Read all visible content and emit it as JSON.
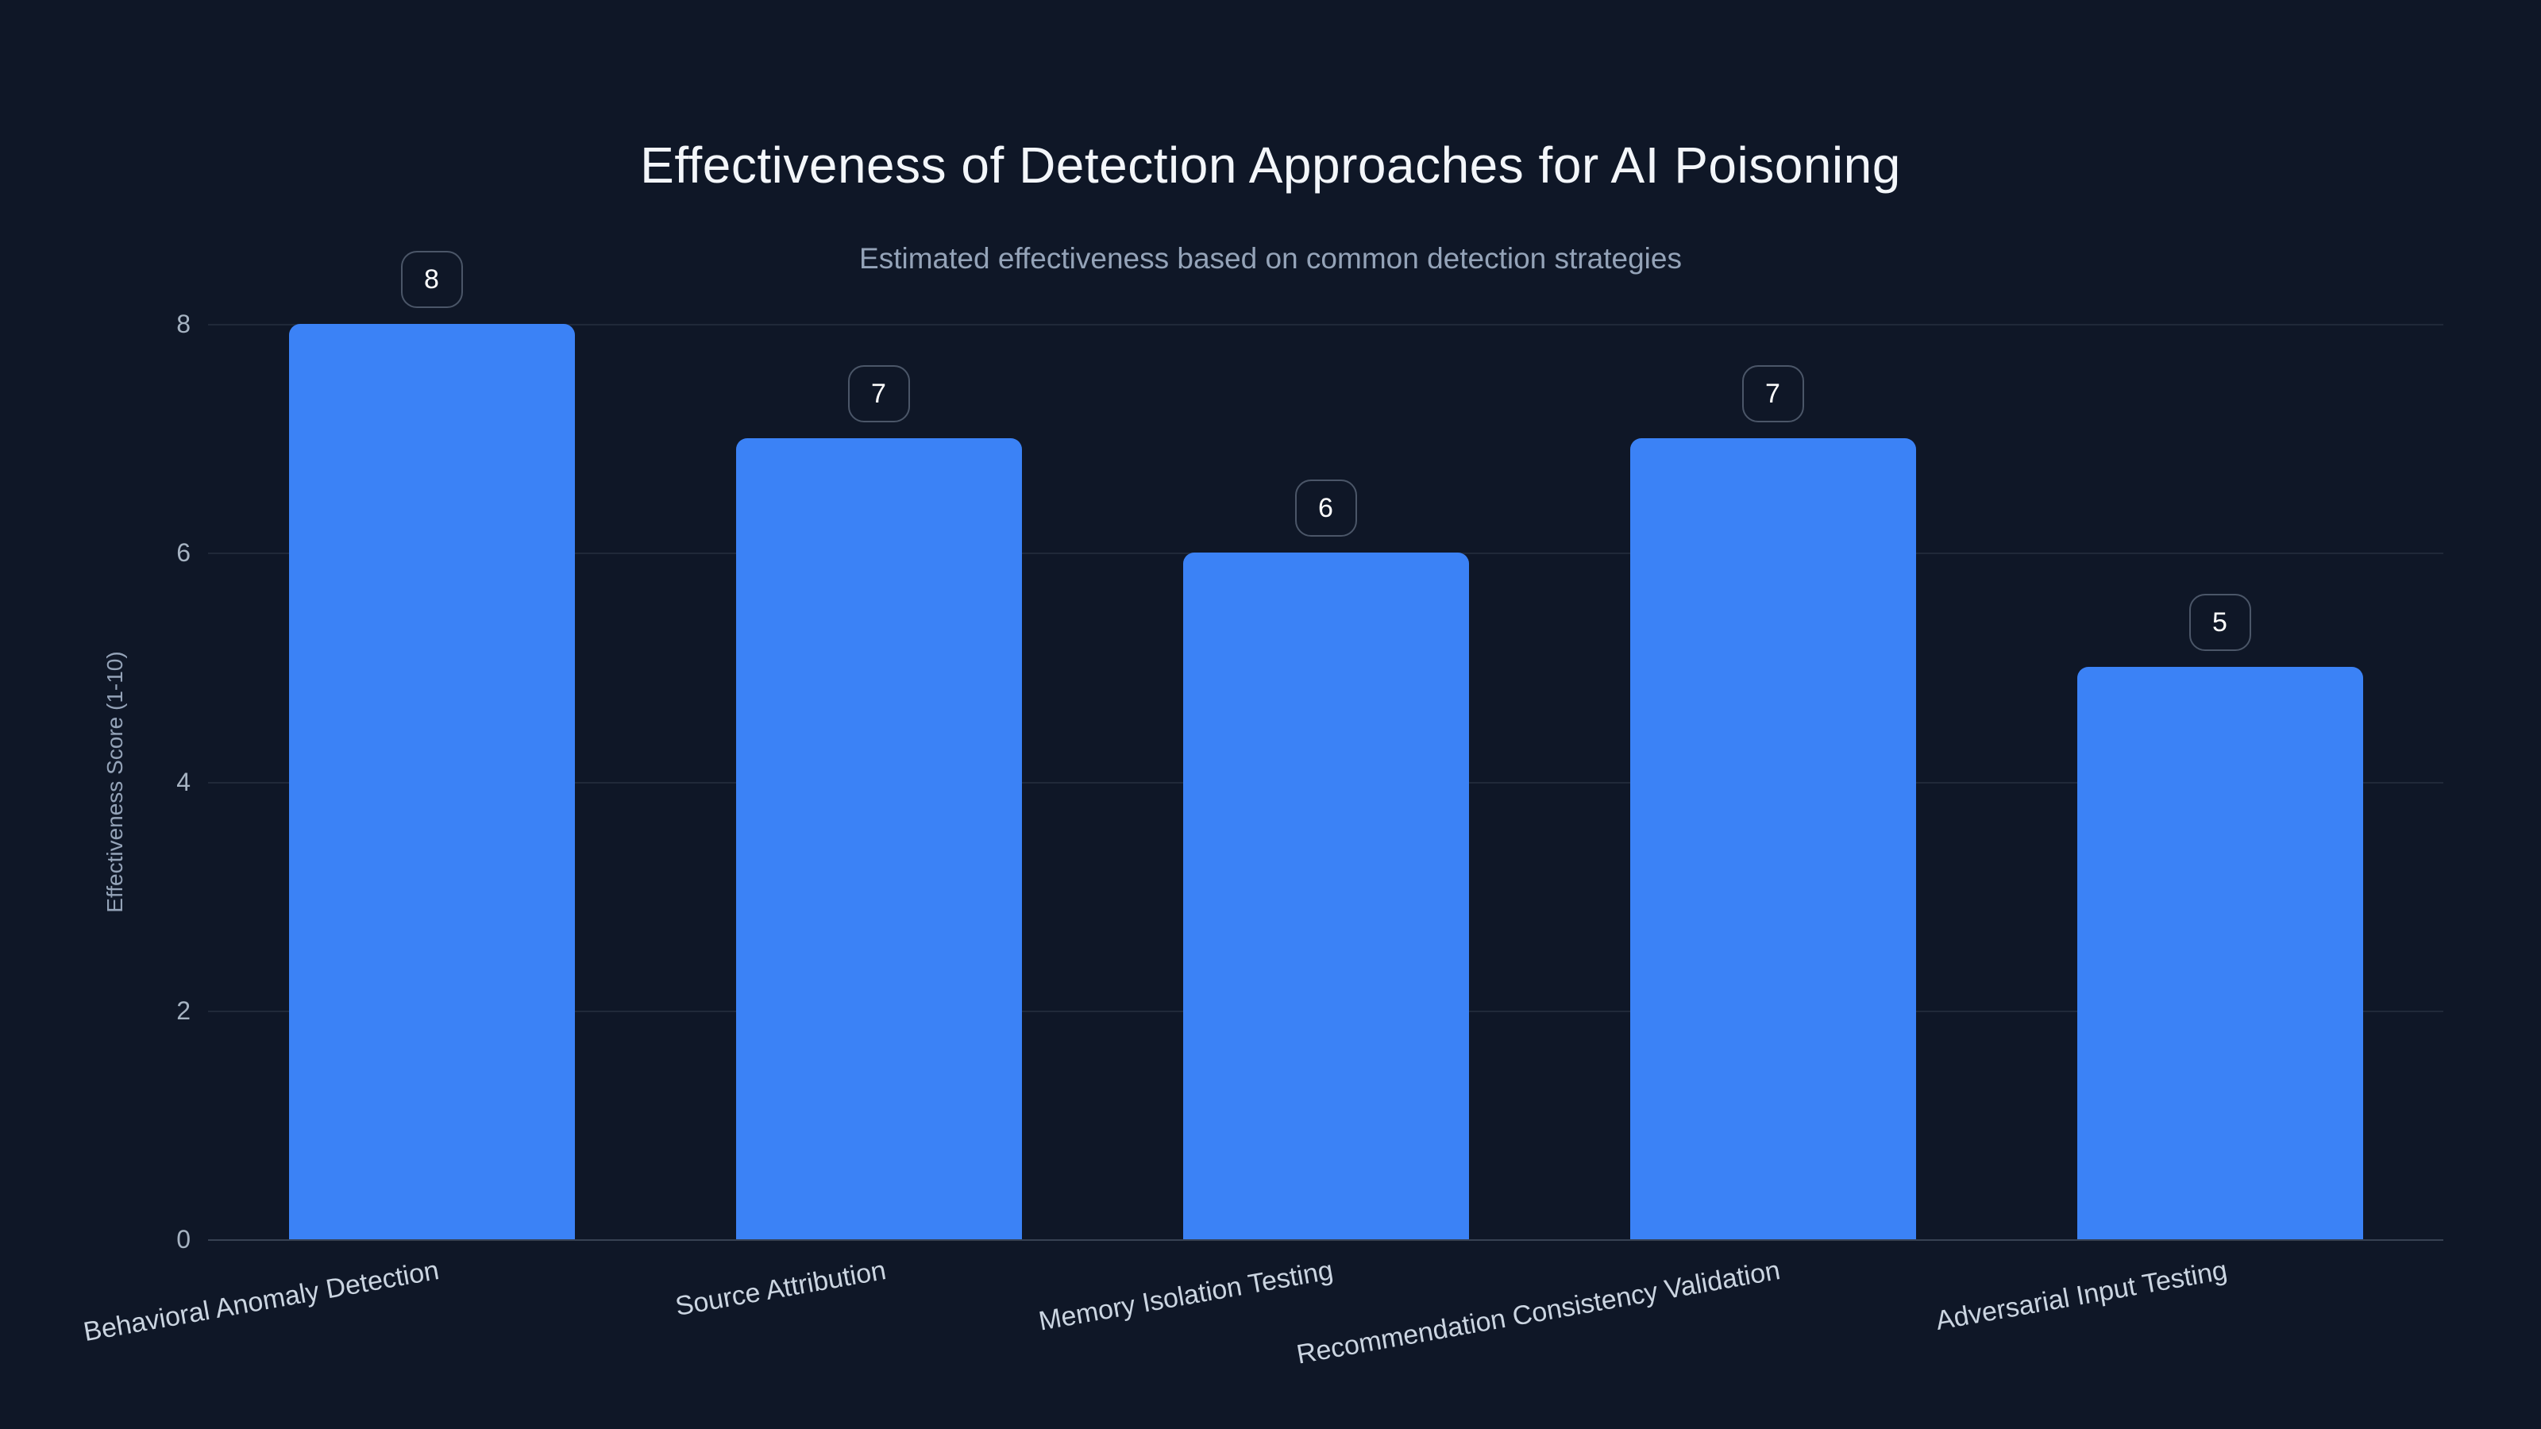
{
  "chart_data": {
    "type": "bar",
    "title": "Effectiveness of Detection Approaches for AI Poisoning",
    "subtitle": "Estimated effectiveness based on common detection strategies",
    "ylabel": "Effectiveness Score (1-10)",
    "xlabel": "",
    "categories": [
      "Behavioral Anomaly Detection",
      "Source Attribution",
      "Memory Isolation Testing",
      "Recommendation Consistency Validation",
      "Adversarial Input Testing"
    ],
    "values": [
      8,
      7,
      6,
      7,
      5
    ],
    "value_labels_shown": true,
    "yticks": [
      0,
      2,
      4,
      6,
      8
    ],
    "ylim": [
      0,
      8
    ],
    "grid": true,
    "legend": false,
    "x_label_rotation_deg": -10,
    "colors": {
      "background": "#0f1727",
      "bar": "#3b82f6",
      "title": "#f3f6fa",
      "subtitle": "#94a3b8",
      "y_tick": "#a6b3c2",
      "category_label": "#cbd5e1",
      "gridline": "rgba(148,163,184,0.13)",
      "axis_line": "rgba(148,163,184,0.30)",
      "value_text": "#ffffff",
      "value_box_border": "rgba(148,163,184,0.45)"
    }
  }
}
